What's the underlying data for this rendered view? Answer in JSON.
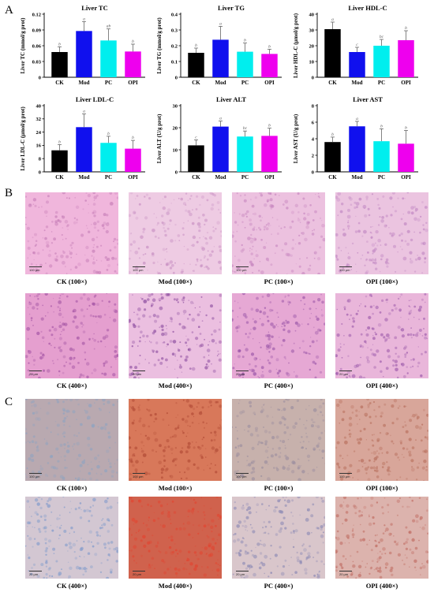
{
  "panels": {
    "a": "A",
    "b": "B",
    "c": "C"
  },
  "colors": [
    "#000000",
    "#1010ee",
    "#00eeee",
    "#ee00ee"
  ],
  "chart_data": [
    {
      "type": "bar",
      "title": "Liver TC",
      "ylabel": "Liver TC (mmol/g prot)",
      "categories": [
        "CK",
        "Mod",
        "PC",
        "OPI"
      ],
      "ylim": [
        0,
        0.12
      ],
      "yticks": [
        "0",
        "0.03",
        "0.06",
        "0.09",
        "0.12"
      ],
      "tick_values": [
        0,
        0.03,
        0.06,
        0.09,
        0.12
      ],
      "values": [
        0.048,
        0.088,
        0.07,
        0.049
      ],
      "errors": [
        0.01,
        0.018,
        0.022,
        0.014
      ],
      "letters": [
        "b",
        "a",
        "ab",
        "b"
      ]
    },
    {
      "type": "bar",
      "title": "Liver TG",
      "ylabel": "Liver TG (mmol/g prot)",
      "categories": [
        "CK",
        "Mod",
        "PC",
        "OPI"
      ],
      "ylim": [
        0,
        0.4
      ],
      "yticks": [
        "0",
        "0.1",
        "0.2",
        "0.3",
        "0.4"
      ],
      "tick_values": [
        0,
        0.1,
        0.2,
        0.3,
        0.4
      ],
      "values": [
        0.155,
        0.238,
        0.162,
        0.148
      ],
      "errors": [
        0.03,
        0.085,
        0.055,
        0.03
      ],
      "letters": [
        "b",
        "a",
        "b",
        "b"
      ]
    },
    {
      "type": "bar",
      "title": "Liver HDL-C",
      "ylabel": "Liver HDL-C (μmol/g prot)",
      "categories": [
        "CK",
        "Mod",
        "PC",
        "OPI"
      ],
      "ylim": [
        0,
        40
      ],
      "yticks": [
        "0",
        "10",
        "20",
        "30",
        "40"
      ],
      "tick_values": [
        0,
        10,
        20,
        30,
        40
      ],
      "values": [
        30.5,
        16.0,
        20.0,
        23.5
      ],
      "errors": [
        4.5,
        3.0,
        4.0,
        6.0
      ],
      "letters": [
        "a",
        "c",
        "bc",
        "b"
      ]
    },
    {
      "type": "bar",
      "title": "Liver LDL-C",
      "ylabel": "Liver LDL-C (μmol/g prot)",
      "categories": [
        "CK",
        "Mod",
        "PC",
        "OPI"
      ],
      "ylim": [
        0,
        40
      ],
      "yticks": [
        "0",
        "8",
        "16",
        "24",
        "32",
        "40"
      ],
      "tick_values": [
        0,
        8,
        16,
        24,
        32,
        40
      ],
      "values": [
        13.0,
        27.0,
        17.5,
        14.0
      ],
      "errors": [
        3.5,
        8.0,
        4.0,
        5.0
      ],
      "letters": [
        "b",
        "a",
        "b",
        "b"
      ]
    },
    {
      "type": "bar",
      "title": "Liver ALT",
      "ylabel": "Liver ALT (U/g prot)",
      "categories": [
        "CK",
        "Mod",
        "PC",
        "OPI"
      ],
      "ylim": [
        0,
        30
      ],
      "yticks": [
        "0",
        "10",
        "20",
        "30"
      ],
      "tick_values": [
        0,
        10,
        20,
        30
      ],
      "values": [
        12.0,
        20.5,
        16.0,
        16.3
      ],
      "errors": [
        2.5,
        2.5,
        2.5,
        3.5
      ],
      "letters": [
        "c",
        "a",
        "bc",
        "b"
      ]
    },
    {
      "type": "bar",
      "title": "Liver AST",
      "ylabel": "Liver AST (U/g prot)",
      "categories": [
        "CK",
        "Mod",
        "PC",
        "OPI"
      ],
      "ylim": [
        0,
        8
      ],
      "yticks": [
        "0",
        "2",
        "4",
        "6",
        "8"
      ],
      "tick_values": [
        0,
        2,
        4,
        6,
        8
      ],
      "values": [
        3.6,
        5.5,
        3.7,
        3.4
      ],
      "errors": [
        0.6,
        0.6,
        1.5,
        1.6
      ],
      "letters": [
        "b",
        "a",
        "b",
        "b"
      ]
    }
  ],
  "he_images": [
    {
      "caption": "CK (100×)",
      "base": "#f0b6dc",
      "spot": "#c77fb8",
      "scale": "100 μm"
    },
    {
      "caption": "Mod (100×)",
      "base": "#eecbe3",
      "spot": "#c890c3",
      "scale": "100 μm"
    },
    {
      "caption": "PC (100×)",
      "base": "#ecc1df",
      "spot": "#c786bf",
      "scale": "100 μm"
    },
    {
      "caption": "OPI (100×)",
      "base": "#ebc4e0",
      "spot": "#c086c2",
      "scale": "100 μm"
    },
    {
      "caption": "CK (400×)",
      "base": "#e59fcf",
      "spot": "#a657a6",
      "scale": "20 μm"
    },
    {
      "caption": "Mod (400×)",
      "base": "#ebbfe0",
      "spot": "#8a4a9e",
      "scale": "20 μm"
    },
    {
      "caption": "PC (400×)",
      "base": "#e6a8d4",
      "spot": "#9a55a8",
      "scale": "20 μm"
    },
    {
      "caption": "OPI (400×)",
      "base": "#e9b6da",
      "spot": "#9c5aab",
      "scale": "20 μm"
    }
  ],
  "oro_images": [
    {
      "caption": "CK (100×)",
      "base": "#b9a9b0",
      "spot": "#8fa3c0",
      "scale": "100 μm"
    },
    {
      "caption": "Mod (100×)",
      "base": "#d8785a",
      "spot": "#b14a35",
      "scale": "100 μm"
    },
    {
      "caption": "PC (100×)",
      "base": "#c7b1ac",
      "spot": "#9a8d9e",
      "scale": "100 μm"
    },
    {
      "caption": "OPI (100×)",
      "base": "#d8a69a",
      "spot": "#b8705e",
      "scale": "100 μm"
    },
    {
      "caption": "CK (400×)",
      "base": "#d3c7d2",
      "spot": "#7f9acb",
      "scale": "20 μm"
    },
    {
      "caption": "Mod (400×)",
      "base": "#d0624d",
      "spot": "#e24430",
      "scale": "20 μm"
    },
    {
      "caption": "PC (400×)",
      "base": "#d9c6cb",
      "spot": "#8a88b4",
      "scale": "20 μm"
    },
    {
      "caption": "OPI (400×)",
      "base": "#dcb3ad",
      "spot": "#c06c62",
      "scale": "20 μm"
    }
  ]
}
